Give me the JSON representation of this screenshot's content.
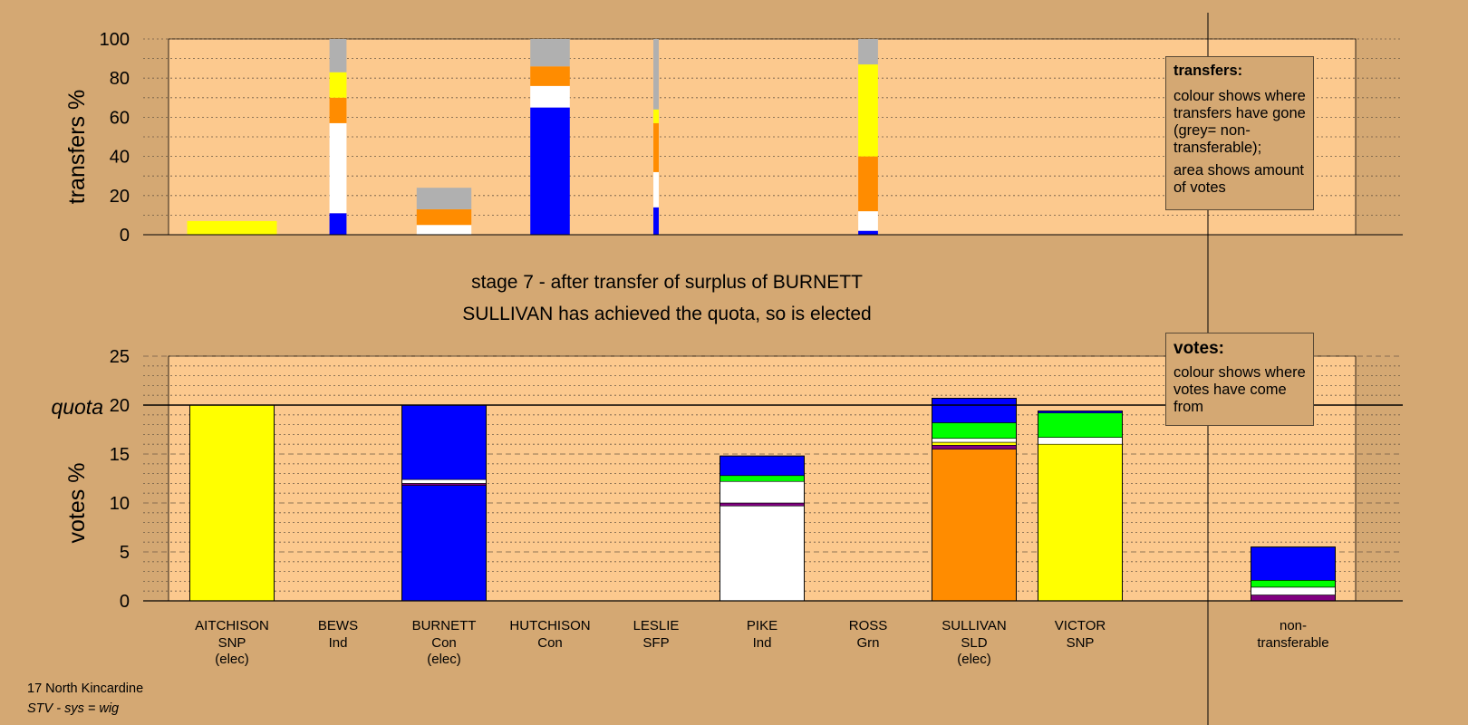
{
  "colors": {
    "background": "#d4a873",
    "plot_area": "#fcc98e",
    "SNP": "#ffff00",
    "Ind": "#ffffff",
    "Con": "#0000ff",
    "SLD": "#ff8c00",
    "Grn": "#00ff00",
    "SFP": "#800080",
    "non_transferable": "#b0b0b0"
  },
  "stage": {
    "line1": "stage 7 - after transfer of surplus of BURNETT",
    "line2": "SULLIVAN has achieved the quota, so is elected"
  },
  "legend_transfers": {
    "title": "transfers:",
    "text1": "colour shows where transfers have gone (grey= non-transferable);",
    "text2": "area shows amount of votes"
  },
  "legend_votes": {
    "title": "votes:",
    "text1": "colour shows where votes have come from"
  },
  "footer": {
    "line1": "17 North Kincardine",
    "line2": "STV - sys = wig"
  },
  "chart_data": [
    {
      "type": "bar",
      "subtype": "stacked-variable-width",
      "ylabel": "transfers %",
      "ylim": [
        0,
        100
      ],
      "yticks": [
        0,
        20,
        40,
        60,
        80,
        100
      ],
      "grid": "dotted every 10",
      "columns": [
        {
          "candidate": "AITCHISON",
          "width_share": 1.0,
          "segments": [
            {
              "color": "SNP",
              "from": 0,
              "to": 7
            }
          ]
        },
        {
          "candidate": "BEWS",
          "width_share": 0.19,
          "segments": [
            {
              "color": "Con",
              "from": 0,
              "to": 11
            },
            {
              "color": "Ind",
              "from": 11,
              "to": 57
            },
            {
              "color": "SLD",
              "from": 57,
              "to": 70
            },
            {
              "color": "SNP",
              "from": 70,
              "to": 83
            },
            {
              "color": "non_transferable",
              "from": 83,
              "to": 100
            }
          ]
        },
        {
          "candidate": "BURNETT",
          "width_share": 0.61,
          "segments": [
            {
              "color": "Ind",
              "from": 0,
              "to": 5
            },
            {
              "color": "SLD",
              "from": 5,
              "to": 13
            },
            {
              "color": "non_transferable",
              "from": 13,
              "to": 24
            }
          ]
        },
        {
          "candidate": "HUTCHISON",
          "width_share": 0.44,
          "segments": [
            {
              "color": "Con",
              "from": 0,
              "to": 65
            },
            {
              "color": "Ind",
              "from": 65,
              "to": 76
            },
            {
              "color": "SLD",
              "from": 76,
              "to": 86
            },
            {
              "color": "non_transferable",
              "from": 86,
              "to": 100
            }
          ]
        },
        {
          "candidate": "LESLIE",
          "width_share": 0.06,
          "segments": [
            {
              "color": "Con",
              "from": 0,
              "to": 14
            },
            {
              "color": "Ind",
              "from": 14,
              "to": 32
            },
            {
              "color": "SLD",
              "from": 32,
              "to": 57
            },
            {
              "color": "SNP",
              "from": 57,
              "to": 64
            },
            {
              "color": "non_transferable",
              "from": 64,
              "to": 100
            }
          ]
        },
        {
          "candidate": "ROSS",
          "width_share": 0.22,
          "segments": [
            {
              "color": "Con",
              "from": 0,
              "to": 2
            },
            {
              "color": "Ind",
              "from": 2,
              "to": 12
            },
            {
              "color": "SLD",
              "from": 12,
              "to": 40
            },
            {
              "color": "SNP",
              "from": 40,
              "to": 87
            },
            {
              "color": "non_transferable",
              "from": 87,
              "to": 100
            }
          ]
        }
      ]
    },
    {
      "type": "bar",
      "subtype": "stacked",
      "ylabel": "votes %",
      "ylim": [
        0,
        25
      ],
      "yticks": [
        0,
        5,
        10,
        15,
        20,
        25
      ],
      "quota": 20,
      "quota_label": "quota",
      "grid": "dashed every 5, dotted every 1",
      "categories": [
        {
          "name": "AITCHISON",
          "party": "SNP",
          "note": "(elec)"
        },
        {
          "name": "BEWS",
          "party": "Ind",
          "note": ""
        },
        {
          "name": "BURNETT",
          "party": "Con",
          "note": "(elec)"
        },
        {
          "name": "HUTCHISON",
          "party": "Con",
          "note": ""
        },
        {
          "name": "LESLIE",
          "party": "SFP",
          "note": ""
        },
        {
          "name": "PIKE",
          "party": "Ind",
          "note": ""
        },
        {
          "name": "ROSS",
          "party": "Grn",
          "note": ""
        },
        {
          "name": "SULLIVAN",
          "party": "SLD",
          "note": "(elec)"
        },
        {
          "name": "VICTOR",
          "party": "SNP",
          "note": ""
        }
      ],
      "non_transferable_label_1": "non-",
      "non_transferable_label_2": "transferable",
      "stacks": [
        {
          "candidate": "AITCHISON",
          "segments": [
            {
              "color": "SNP",
              "from": 0,
              "to": 20
            }
          ]
        },
        {
          "candidate": "BEWS",
          "segments": []
        },
        {
          "candidate": "BURNETT",
          "segments": [
            {
              "color": "Con",
              "from": 0,
              "to": 11.8
            },
            {
              "color": "SFP",
              "from": 11.8,
              "to": 12.0
            },
            {
              "color": "Ind",
              "from": 12.0,
              "to": 12.4
            },
            {
              "color": "Con",
              "from": 12.4,
              "to": 20
            }
          ]
        },
        {
          "candidate": "HUTCHISON",
          "segments": []
        },
        {
          "candidate": "LESLIE",
          "segments": []
        },
        {
          "candidate": "PIKE",
          "segments": [
            {
              "color": "Ind",
              "from": 0,
              "to": 9.7
            },
            {
              "color": "SFP",
              "from": 9.7,
              "to": 10.0
            },
            {
              "color": "Ind",
              "from": 10.0,
              "to": 12.2
            },
            {
              "color": "Grn",
              "from": 12.2,
              "to": 12.8
            },
            {
              "color": "Con",
              "from": 12.8,
              "to": 14.8
            }
          ]
        },
        {
          "candidate": "ROSS",
          "segments": []
        },
        {
          "candidate": "SULLIVAN",
          "segments": [
            {
              "color": "SLD",
              "from": 0,
              "to": 15.5
            },
            {
              "color": "SFP",
              "from": 15.5,
              "to": 15.9
            },
            {
              "color": "SNP",
              "from": 15.9,
              "to": 16.2
            },
            {
              "color": "Ind",
              "from": 16.2,
              "to": 16.6
            },
            {
              "color": "Grn",
              "from": 16.6,
              "to": 18.2
            },
            {
              "color": "Con",
              "from": 18.2,
              "to": 20.7
            }
          ]
        },
        {
          "candidate": "VICTOR",
          "segments": [
            {
              "color": "SNP",
              "from": 0,
              "to": 16.0
            },
            {
              "color": "Ind",
              "from": 16.0,
              "to": 16.7
            },
            {
              "color": "Grn",
              "from": 16.7,
              "to": 19.2
            },
            {
              "color": "Con",
              "from": 19.2,
              "to": 19.4
            }
          ]
        },
        {
          "candidate": "non-transferable",
          "segments": [
            {
              "color": "SFP",
              "from": 0,
              "to": 0.6
            },
            {
              "color": "Ind",
              "from": 0.6,
              "to": 1.4
            },
            {
              "color": "Grn",
              "from": 1.4,
              "to": 2.1
            },
            {
              "color": "Con",
              "from": 2.1,
              "to": 5.5
            }
          ]
        }
      ]
    }
  ]
}
